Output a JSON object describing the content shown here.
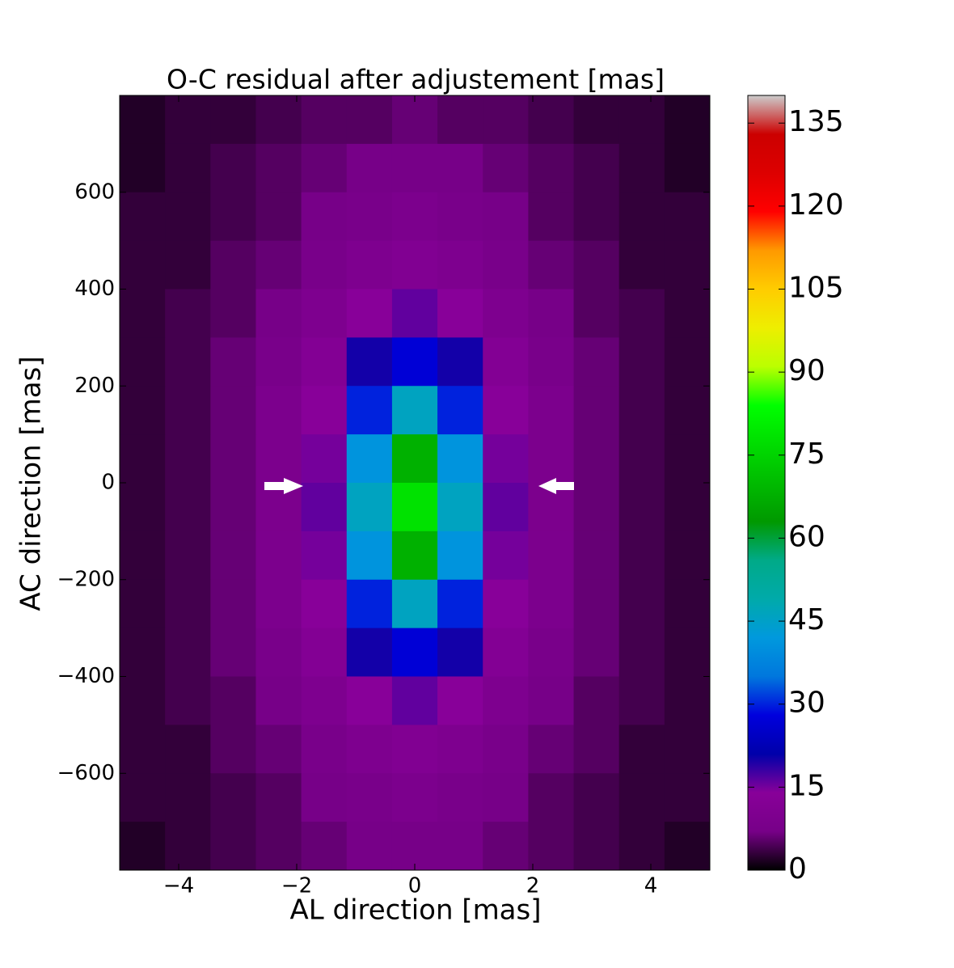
{
  "chart_data": {
    "type": "heatmap",
    "title": "O-C residual after adjustement [mas]",
    "x_label": "AL direction [mas]",
    "y_label": "AC direction [mas]",
    "xbins": [
      -5,
      -4.2308,
      -3.4615,
      -2.6923,
      -1.9231,
      -1.1538,
      -0.3846,
      0.3846,
      1.1538,
      1.9231,
      2.6923,
      3.4615,
      4.2308,
      5
    ],
    "ybins": [
      800,
      700,
      600,
      500,
      400,
      300,
      200,
      100,
      0,
      -100,
      -200,
      -300,
      -400,
      -500,
      -600,
      -700,
      -800
    ],
    "z": [
      [
        2,
        3,
        3,
        4,
        5,
        5,
        6,
        5,
        5,
        4,
        3,
        3,
        2
      ],
      [
        2,
        3,
        4,
        5,
        6,
        7,
        7,
        7,
        6,
        5,
        4,
        3,
        2
      ],
      [
        3,
        3,
        4,
        5,
        7,
        8,
        9,
        8,
        7,
        5,
        4,
        3,
        3
      ],
      [
        3,
        3,
        5,
        6,
        8,
        10,
        11,
        10,
        8,
        6,
        5,
        3,
        3
      ],
      [
        3,
        4,
        5,
        7,
        10,
        14,
        16,
        14,
        10,
        7,
        5,
        4,
        3
      ],
      [
        3,
        4,
        6,
        8,
        12,
        20,
        27,
        20,
        12,
        8,
        6,
        4,
        3
      ],
      [
        3,
        4,
        6,
        9,
        14,
        30,
        46,
        30,
        14,
        9,
        6,
        4,
        3
      ],
      [
        3,
        4,
        6,
        9,
        15,
        41,
        68,
        41,
        15,
        9,
        6,
        4,
        3
      ],
      [
        3,
        4,
        6,
        9,
        16,
        46,
        78,
        46,
        16,
        9,
        6,
        4,
        3
      ],
      [
        3,
        4,
        6,
        9,
        15,
        41,
        68,
        41,
        15,
        9,
        6,
        4,
        3
      ],
      [
        3,
        4,
        6,
        9,
        14,
        30,
        46,
        30,
        14,
        9,
        6,
        4,
        3
      ],
      [
        3,
        4,
        6,
        8,
        12,
        20,
        27,
        20,
        12,
        8,
        6,
        4,
        3
      ],
      [
        3,
        4,
        5,
        7,
        10,
        14,
        16,
        14,
        10,
        7,
        5,
        4,
        3
      ],
      [
        3,
        3,
        5,
        6,
        8,
        10,
        11,
        10,
        8,
        6,
        5,
        3,
        3
      ],
      [
        3,
        3,
        4,
        5,
        7,
        8,
        9,
        8,
        7,
        5,
        4,
        3,
        3
      ],
      [
        2,
        3,
        4,
        5,
        6,
        7,
        7,
        7,
        6,
        5,
        4,
        3,
        2
      ]
    ],
    "xlim": [
      -5,
      5
    ],
    "ylim": [
      -800,
      800
    ],
    "xticks": [
      {
        "value": -4,
        "label": "−4"
      },
      {
        "value": -2,
        "label": "−2"
      },
      0,
      2,
      4
    ],
    "yticks": [
      {
        "value": -600,
        "label": "−600"
      },
      {
        "value": -400,
        "label": "−400"
      },
      {
        "value": -200,
        "label": "−200"
      },
      0,
      200,
      400,
      600
    ],
    "colormap": "nipy_spectral",
    "zlim": [
      0,
      140
    ],
    "zticks": [
      0,
      15,
      30,
      45,
      60,
      75,
      90,
      105,
      120,
      135
    ]
  }
}
